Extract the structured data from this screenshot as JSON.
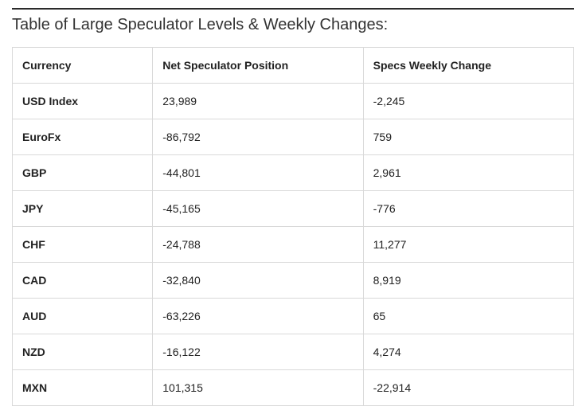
{
  "title": "Table of Large Speculator Levels & Weekly Changes:",
  "columns": [
    "Currency",
    "Net Speculator Position",
    "Specs Weekly Change"
  ],
  "rows": [
    {
      "currency": "USD Index",
      "position": "23,989",
      "change": "-2,245"
    },
    {
      "currency": "EuroFx",
      "position": "-86,792",
      "change": "759"
    },
    {
      "currency": "GBP",
      "position": "-44,801",
      "change": "2,961"
    },
    {
      "currency": "JPY",
      "position": "-45,165",
      "change": "-776"
    },
    {
      "currency": "CHF",
      "position": "-24,788",
      "change": "11,277"
    },
    {
      "currency": "CAD",
      "position": "-32,840",
      "change": "8,919"
    },
    {
      "currency": "AUD",
      "position": "-63,226",
      "change": "65"
    },
    {
      "currency": "NZD",
      "position": "-16,122",
      "change": "4,274"
    },
    {
      "currency": "MXN",
      "position": "101,315",
      "change": "-22,914"
    }
  ],
  "styling": {
    "background_color": "#ffffff",
    "title_color": "#333333",
    "title_fontsize": 20,
    "title_fontweight": 400,
    "cell_text_color": "#222222",
    "border_color": "#d9d9d9",
    "top_rule_color": "#2b2b2b",
    "header_fontweight": 700,
    "currency_col_fontweight": 700,
    "value_fontweight": 400,
    "cell_fontsize": 14,
    "column_widths_pct": [
      25,
      37.5,
      37.5
    ]
  }
}
